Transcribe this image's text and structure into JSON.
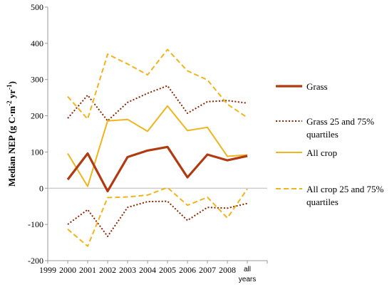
{
  "chart_data": {
    "type": "line",
    "ylabel": "Median NEP (g C m⁻² yr⁻¹)",
    "ylabel_parts": {
      "main": "Median NEP (g C",
      "sep1": "·m",
      "exp1": "-2",
      "sep2": " yr",
      "exp2": "-1",
      "end": ")"
    },
    "ylim": [
      -200,
      500
    ],
    "yticks": [
      -200,
      -100,
      0,
      100,
      200,
      300,
      400,
      500
    ],
    "ytick_labels": [
      "-200",
      "-100",
      "0",
      "100",
      "200",
      "300",
      "400",
      "500"
    ],
    "x_axis_start_label": "1999",
    "categories": [
      "2000",
      "2001",
      "2002",
      "2003",
      "2004",
      "2005",
      "2006",
      "2007",
      "2008",
      "all years"
    ],
    "category_label_lines": [
      [
        "2000"
      ],
      [
        "2001"
      ],
      [
        "2002"
      ],
      [
        "2003"
      ],
      [
        "2004"
      ],
      [
        "2005"
      ],
      [
        "2006"
      ],
      [
        "2007"
      ],
      [
        "2008"
      ],
      [
        "all",
        "years"
      ]
    ],
    "series": [
      {
        "key": "grass_q75",
        "values": [
          193,
          257,
          186,
          237,
          262,
          283,
          207,
          239,
          242,
          235
        ],
        "color": "#8B2500",
        "style": "dotted",
        "width": 2
      },
      {
        "key": "grass_q25",
        "values": [
          -100,
          -59,
          -133,
          -53,
          -37,
          -36,
          -89,
          -53,
          -55,
          -42
        ],
        "color": "#8B2500",
        "style": "dotted",
        "width": 2
      },
      {
        "key": "crop_q75",
        "values": [
          253,
          191,
          370,
          343,
          313,
          383,
          324,
          299,
          232,
          195
        ],
        "color": "#F0B41E",
        "style": "dashed",
        "width": 2
      },
      {
        "key": "crop_q25",
        "values": [
          -113,
          -160,
          -26,
          -24,
          -19,
          2,
          -47,
          -25,
          -82,
          -2
        ],
        "color": "#F0B41E",
        "style": "dashed",
        "width": 2
      },
      {
        "key": "crop",
        "values": [
          96,
          5,
          186,
          190,
          157,
          227,
          159,
          168,
          88,
          92
        ],
        "color": "#F0B41E",
        "style": "solid",
        "width": 2
      },
      {
        "key": "grass",
        "values": [
          24,
          96,
          -8,
          86,
          104,
          114,
          30,
          93,
          77,
          89
        ],
        "color": "#B23A10",
        "style": "solid",
        "width": 3.2
      }
    ],
    "legend": {
      "placement": "right",
      "entries": [
        {
          "lines": [
            "Grass"
          ],
          "color": "#B23A10",
          "style": "solid",
          "width": 3.2
        },
        {
          "lines": [
            "Grass 25 and 75%",
            "quartiles"
          ],
          "color": "#8B2500",
          "style": "dotted",
          "width": 2
        },
        {
          "lines": [
            "All crop"
          ],
          "color": "#F0B41E",
          "style": "solid",
          "width": 2
        },
        {
          "lines": [
            "All crop 25 and 75%",
            "quartiles"
          ],
          "color": "#F0B41E",
          "style": "dashed",
          "width": 2
        }
      ]
    },
    "grid": false
  }
}
